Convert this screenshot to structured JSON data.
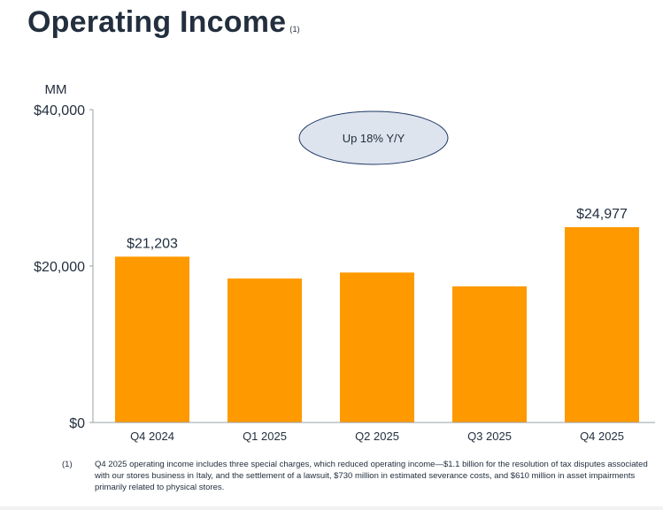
{
  "page": {
    "title": "Operating Income",
    "title_note": "(1)",
    "footnote_marker": "(1)",
    "footnote_text": "Q4 2025 operating income includes three special charges, which reduced operating income—$1.1 billion for the resolution of tax disputes associated with our stores business in Italy, and the settlement of a lawsuit, $730 million in estimated severance costs, and $610 million in asset impairments primarily related to physical stores."
  },
  "chart_data": {
    "type": "bar",
    "title": "Operating Income",
    "ylabel": "MM",
    "categories": [
      "Q4 2024",
      "Q1 2025",
      "Q2 2025",
      "Q3 2025",
      "Q4 2025"
    ],
    "values": [
      21203,
      18405,
      19171,
      17400,
      24977
    ],
    "data_labels": [
      "$21,203",
      "",
      "",
      "",
      "$24,977"
    ],
    "ylim": [
      0,
      40000
    ],
    "yticks": [
      0,
      20000,
      40000
    ],
    "ytick_labels": [
      "$0",
      "$20,000",
      "$40,000"
    ],
    "grid": false,
    "bar_color": "#ff9900",
    "callout": {
      "text": "Up 18% Y/Y",
      "fill": "#dde4ee",
      "stroke": "#1f3864"
    }
  }
}
